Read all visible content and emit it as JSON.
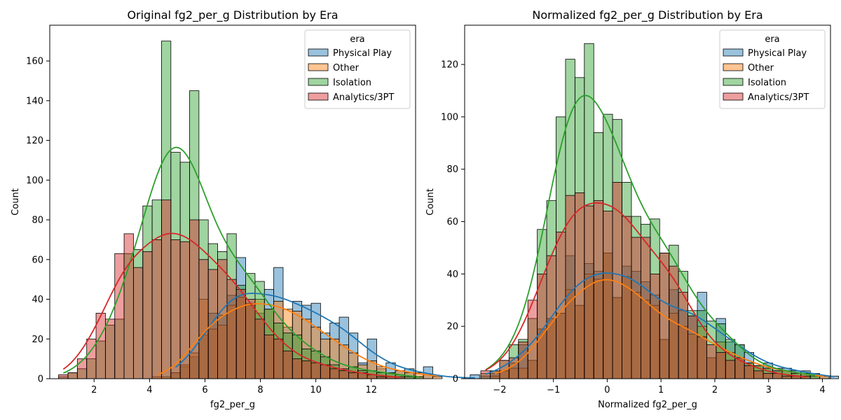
{
  "colors": {
    "Physical Play": "#1f77b4",
    "Other": "#ff7f0e",
    "Isolation": "#2ca02c",
    "Analytics/3PT": "#d62728"
  },
  "chart_data": [
    {
      "type": "histogram",
      "title": "Original fg2_per_g Distribution by Era",
      "xlabel": "fg2_per_g",
      "ylabel": "Count",
      "xlim": [
        0.4,
        13.6
      ],
      "ylim": [
        0,
        178
      ],
      "xticks": [
        2,
        4,
        6,
        8,
        10,
        12
      ],
      "yticks": [
        0,
        20,
        40,
        60,
        80,
        100,
        120,
        140,
        160
      ],
      "bin_start": 0.72,
      "bin_width": 0.3375,
      "legend": {
        "title": "era",
        "location": "top-right",
        "entries": [
          "Physical Play",
          "Other",
          "Isolation",
          "Analytics/3PT"
        ]
      },
      "series": [
        {
          "name": "Physical Play",
          "counts": [
            0,
            0,
            0,
            0,
            0,
            0,
            0,
            0,
            0,
            0,
            0,
            0,
            3,
            6,
            11,
            22,
            33,
            32,
            42,
            61,
            37,
            33,
            45,
            56,
            26,
            39,
            37,
            38,
            23,
            28,
            31,
            23,
            8,
            20,
            5,
            8,
            4,
            5,
            1,
            6,
            0,
            0,
            0,
            0,
            2
          ]
        },
        {
          "name": "Other",
          "counts": [
            0,
            0,
            0,
            0,
            0,
            0,
            0,
            0,
            0,
            0,
            1,
            1,
            3,
            7,
            13,
            40,
            25,
            27,
            37,
            41,
            38,
            40,
            35,
            39,
            35,
            34,
            30,
            26,
            20,
            20,
            17,
            13,
            7,
            9,
            6,
            3,
            4,
            3,
            3,
            2,
            1,
            0,
            0,
            0,
            0
          ]
        },
        {
          "name": "Isolation",
          "counts": [
            1,
            3,
            5,
            10,
            19,
            27,
            30,
            63,
            65,
            87,
            90,
            170,
            114,
            109,
            145,
            80,
            68,
            64,
            73,
            47,
            53,
            49,
            35,
            28,
            23,
            22,
            15,
            14,
            11,
            7,
            5,
            6,
            4,
            4,
            3,
            3,
            2,
            1,
            1,
            0,
            0,
            0,
            0,
            0,
            0
          ]
        },
        {
          "name": "Analytics/3PT",
          "counts": [
            2,
            3,
            10,
            20,
            33,
            30,
            63,
            73,
            56,
            64,
            70,
            90,
            70,
            69,
            80,
            60,
            55,
            60,
            50,
            45,
            40,
            30,
            22,
            20,
            14,
            10,
            9,
            8,
            7,
            5,
            4,
            3,
            3,
            2,
            1,
            1,
            1,
            0,
            0,
            0,
            0,
            0,
            0,
            0,
            0
          ]
        }
      ]
    },
    {
      "type": "histogram",
      "title": "Normalized fg2_per_g Distribution by Era",
      "xlabel": "Normalized fg2_per_g",
      "ylabel": "Count",
      "xlim": [
        -2.65,
        4.15
      ],
      "ylim": [
        0,
        135
      ],
      "xticks": [
        -2,
        -1,
        0,
        1,
        2,
        3,
        4
      ],
      "yticks": [
        0,
        20,
        40,
        60,
        80,
        100,
        120
      ],
      "bin_start": -2.35,
      "bin_width": 0.175,
      "legend": {
        "title": "era",
        "location": "top-right",
        "entries": [
          "Physical Play",
          "Other",
          "Isolation",
          "Analytics/3PT"
        ]
      },
      "series": [
        {
          "name": "Physical Play",
          "counts": [
            1,
            2,
            3,
            6,
            13,
            7,
            19,
            23,
            25,
            47,
            28,
            44,
            41,
            48,
            31,
            43,
            41,
            37,
            32,
            15,
            34,
            26,
            24,
            33,
            8,
            23,
            14,
            13,
            10,
            5,
            6,
            4,
            4,
            3,
            3,
            1,
            1,
            1,
            0
          ]
        },
        {
          "name": "Other",
          "counts": [
            0,
            1,
            3,
            4,
            4,
            7,
            19,
            23,
            25,
            34,
            28,
            40,
            38,
            48,
            31,
            39,
            33,
            30,
            28,
            15,
            25,
            20,
            17,
            20,
            8,
            14,
            10,
            8,
            6,
            5,
            4,
            3,
            3,
            2,
            2,
            1,
            1,
            0,
            0
          ]
        },
        {
          "name": "Isolation",
          "counts": [
            2,
            3,
            7,
            13,
            15,
            23,
            57,
            68,
            100,
            122,
            115,
            128,
            94,
            101,
            99,
            75,
            62,
            59,
            61,
            48,
            51,
            41,
            26,
            26,
            22,
            21,
            15,
            13,
            6,
            5,
            4,
            3,
            3,
            2,
            2,
            2,
            0,
            0,
            0
          ]
        },
        {
          "name": "Analytics/3PT",
          "counts": [
            3,
            3,
            7,
            8,
            14,
            30,
            40,
            47,
            56,
            70,
            71,
            66,
            68,
            64,
            75,
            62,
            54,
            54,
            40,
            48,
            43,
            33,
            24,
            16,
            13,
            10,
            7,
            8,
            5,
            3,
            2,
            2,
            1,
            1,
            1,
            0,
            0,
            0,
            0
          ]
        }
      ]
    }
  ]
}
